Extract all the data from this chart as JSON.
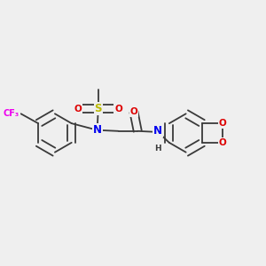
{
  "bg_color": "#efefef",
  "bond_color": "#3a3a3a",
  "colors": {
    "N": "#0000ee",
    "O": "#dd0000",
    "S": "#bbbb00",
    "F": "#ee00ee",
    "C": "#3a3a3a",
    "H": "#3a3a3a"
  },
  "font_size": 7.5,
  "bond_width": 1.3,
  "figsize": [
    3.0,
    3.0
  ],
  "dpi": 100
}
